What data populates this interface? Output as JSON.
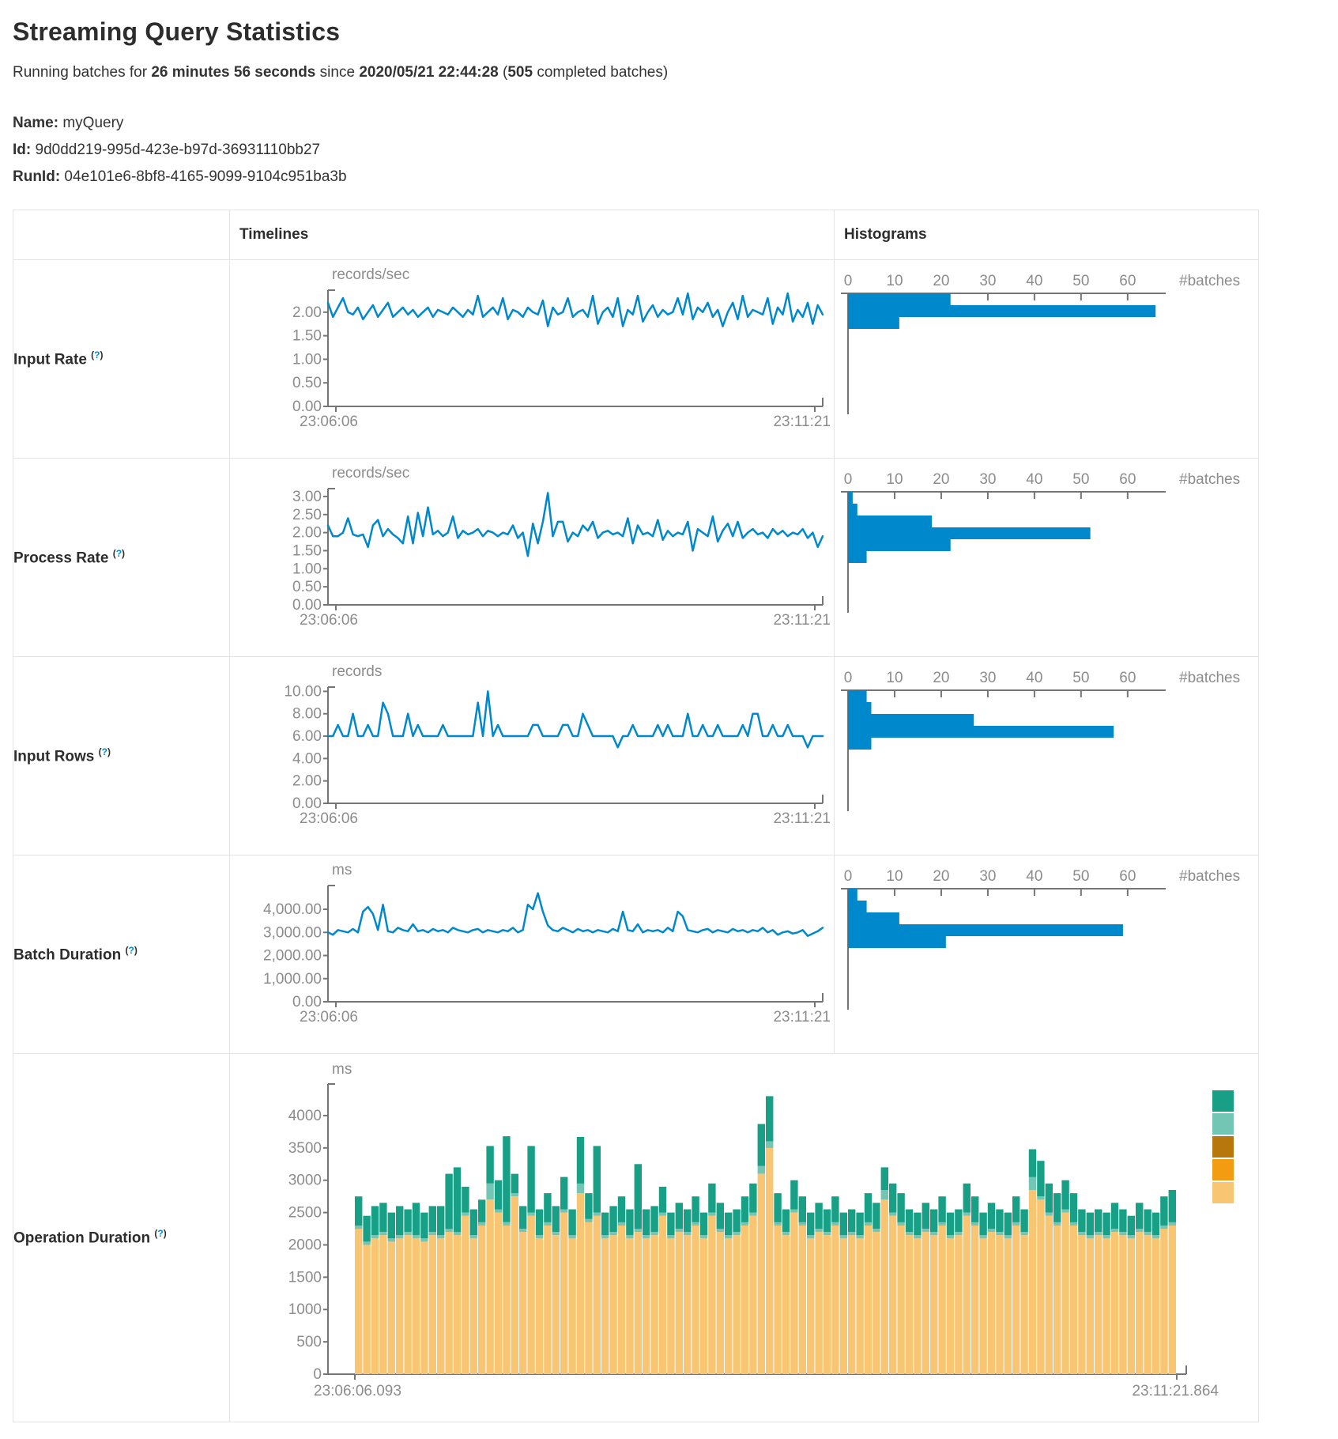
{
  "header": {
    "title": "Streaming Query Statistics",
    "running_prefix": "Running batches for ",
    "duration": "26 minutes 56 seconds",
    "since_text": " since ",
    "start_time": "2020/05/21 22:44:28",
    "paren_open": " (",
    "completed_batches": "505",
    "completed_suffix": " completed batches)"
  },
  "query_info": {
    "name_label": "Name:",
    "name": " myQuery",
    "id_label": "Id:",
    "id": " 9d0dd219-995d-423e-b97d-36931110bb27",
    "runid_label": "RunId:",
    "runid": " 04e101e6-8bf8-4165-9099-9104c951ba3b"
  },
  "table_header": {
    "timelines": "Timelines",
    "histograms": "Histograms"
  },
  "hint": {
    "open": "(",
    "q": "?",
    "close": ")"
  },
  "rows": [
    {
      "label": "Input Rate"
    },
    {
      "label": "Process Rate"
    },
    {
      "label": "Input Rows"
    },
    {
      "label": "Batch Duration"
    },
    {
      "label": "Operation Duration"
    }
  ],
  "colors": {
    "line_blue": "#0088cc",
    "axis": "#757575",
    "tick_text": "#8c8c8c",
    "border": "#e3e3e3"
  },
  "chart_data": [
    {
      "type": "line",
      "title": "records/sec",
      "x_start": "23:06:06",
      "x_end": "23:11:21",
      "ylim": [
        0,
        2.4
      ],
      "yticks": [
        {
          "label": "2.00",
          "v": 2
        },
        {
          "label": "1.50",
          "v": 1.5
        },
        {
          "label": "1.00",
          "v": 1
        },
        {
          "label": "0.50",
          "v": 0.5
        },
        {
          "label": "0.00",
          "v": 0
        }
      ],
      "values": [
        2.2,
        1.9,
        2.1,
        2.3,
        2.0,
        1.95,
        2.1,
        1.85,
        2.0,
        2.15,
        1.9,
        2.05,
        2.2,
        1.9,
        2.0,
        2.1,
        1.95,
        2.05,
        1.9,
        2.0,
        2.1,
        1.9,
        2.05,
        2.0,
        1.95,
        2.1,
        2.0,
        1.9,
        2.05,
        1.95,
        2.35,
        1.9,
        2.0,
        2.1,
        1.95,
        2.3,
        1.85,
        2.05,
        2.0,
        1.9,
        2.1,
        2.0,
        1.95,
        2.25,
        1.7,
        2.1,
        1.95,
        2.0,
        2.3,
        1.9,
        2.0,
        2.05,
        1.9,
        2.35,
        1.75,
        2.0,
        2.1,
        1.9,
        2.3,
        1.7,
        2.05,
        1.95,
        2.35,
        1.8,
        2.0,
        2.15,
        1.9,
        2.05,
        1.95,
        2.0,
        2.3,
        1.95,
        2.4,
        1.85,
        2.1,
        2.0,
        2.2,
        1.9,
        2.05,
        1.7,
        2.0,
        2.2,
        1.85,
        2.35,
        1.9,
        2.05,
        2.0,
        1.95,
        2.3,
        1.75,
        2.1,
        1.95,
        2.4,
        1.8,
        2.05,
        1.9,
        2.2,
        1.75,
        2.15,
        1.95
      ]
    },
    {
      "type": "hbar",
      "xlabel": "#batches",
      "xticks": [
        0,
        10,
        20,
        30,
        40,
        50,
        60
      ],
      "xlim": [
        0,
        68
      ],
      "values": [
        22,
        66,
        11
      ]
    },
    {
      "type": "line",
      "title": "records/sec",
      "x_start": "23:06:06",
      "x_end": "23:11:21",
      "ylim": [
        0,
        3.13
      ],
      "yticks": [
        {
          "label": "3.00",
          "v": 3
        },
        {
          "label": "2.50",
          "v": 2.5
        },
        {
          "label": "2.00",
          "v": 2
        },
        {
          "label": "1.50",
          "v": 1.5
        },
        {
          "label": "1.00",
          "v": 1
        },
        {
          "label": "0.50",
          "v": 0.5
        },
        {
          "label": "0.00",
          "v": 0
        }
      ],
      "values": [
        2.2,
        1.9,
        1.9,
        2.0,
        2.4,
        1.95,
        1.9,
        1.95,
        1.6,
        2.2,
        2.35,
        1.9,
        2.1,
        1.95,
        1.85,
        1.7,
        2.45,
        1.7,
        2.55,
        1.9,
        2.7,
        1.95,
        2.05,
        1.9,
        2.0,
        2.45,
        1.85,
        2.05,
        1.95,
        2.0,
        2.1,
        1.9,
        2.05,
        2.0,
        1.9,
        2.0,
        1.95,
        2.2,
        1.85,
        2.0,
        1.35,
        2.25,
        1.7,
        2.3,
        3.1,
        1.9,
        2.3,
        2.3,
        1.75,
        2.0,
        1.9,
        2.2,
        2.05,
        2.3,
        1.85,
        2.0,
        2.05,
        1.95,
        2.0,
        1.9,
        2.4,
        1.7,
        2.2,
        1.95,
        2.0,
        1.9,
        2.35,
        1.8,
        2.05,
        1.9,
        2.0,
        1.95,
        2.3,
        1.5,
        2.1,
        2.0,
        1.9,
        2.45,
        1.75,
        2.05,
        2.25,
        1.9,
        2.3,
        1.85,
        2.0,
        2.1,
        1.95,
        2.0,
        1.85,
        2.1,
        1.95,
        2.05,
        1.9,
        2.0,
        1.95,
        2.1,
        1.85,
        2.0,
        1.6,
        1.9
      ]
    },
    {
      "type": "hbar",
      "xlabel": "#batches",
      "xticks": [
        0,
        10,
        20,
        30,
        40,
        50,
        60
      ],
      "xlim": [
        0,
        68
      ],
      "values": [
        1,
        2,
        18,
        52,
        22,
        4
      ]
    },
    {
      "type": "line",
      "title": "records",
      "x_start": "23:06:06",
      "x_end": "23:11:21",
      "ylim": [
        0,
        10.1
      ],
      "yticks": [
        {
          "label": "10.00",
          "v": 10
        },
        {
          "label": "8.00",
          "v": 8
        },
        {
          "label": "6.00",
          "v": 6
        },
        {
          "label": "4.00",
          "v": 4
        },
        {
          "label": "2.00",
          "v": 2
        },
        {
          "label": "0.00",
          "v": 0
        }
      ],
      "values": [
        6,
        6,
        7,
        6,
        6,
        8,
        6,
        6,
        7,
        6,
        6,
        9,
        8,
        6,
        6,
        6,
        8,
        6,
        7,
        6,
        6,
        6,
        6,
        7,
        6,
        6,
        6,
        6,
        6,
        6,
        9,
        6,
        10,
        6,
        7,
        6,
        6,
        6,
        6,
        6,
        6,
        7,
        7,
        6,
        6,
        6,
        6,
        7,
        7,
        6,
        6,
        8,
        7,
        6,
        6,
        6,
        6,
        6,
        5,
        6,
        6,
        7,
        6,
        6,
        6,
        6,
        7,
        6,
        7,
        6,
        6,
        6,
        8,
        6,
        6,
        7,
        6,
        6,
        7,
        6,
        6,
        6,
        6,
        7,
        6,
        8,
        8,
        6,
        6,
        7,
        6,
        6,
        7,
        6,
        6,
        6,
        5,
        6,
        6,
        6
      ]
    },
    {
      "type": "hbar",
      "xlabel": "#batches",
      "xticks": [
        0,
        10,
        20,
        30,
        40,
        50,
        60
      ],
      "xlim": [
        0,
        68
      ],
      "values": [
        4,
        5,
        27,
        57,
        5
      ]
    },
    {
      "type": "line",
      "title": "ms",
      "x_start": "23:06:06",
      "x_end": "23:11:21",
      "ylim": [
        0,
        4890
      ],
      "yticks": [
        {
          "label": "4,000.00",
          "v": 4000
        },
        {
          "label": "3,000.00",
          "v": 3000
        },
        {
          "label": "2,000.00",
          "v": 2000
        },
        {
          "label": "1,000.00",
          "v": 1000
        },
        {
          "label": "0.00",
          "v": 0
        }
      ],
      "values": [
        3000,
        2900,
        3100,
        3050,
        3000,
        3150,
        3000,
        3900,
        4100,
        3800,
        3100,
        4200,
        3050,
        3000,
        3200,
        3100,
        3050,
        3350,
        3050,
        3100,
        3000,
        3150,
        3050,
        3100,
        3000,
        3200,
        3100,
        3050,
        3000,
        3100,
        3150,
        3000,
        3100,
        3050,
        3000,
        3100,
        3050,
        3200,
        3000,
        3100,
        4200,
        4000,
        4700,
        3900,
        3300,
        3100,
        3050,
        3200,
        3100,
        3000,
        3150,
        3050,
        3100,
        3000,
        3100,
        3050,
        3000,
        3150,
        3050,
        3900,
        3100,
        3050,
        3350,
        3000,
        3100,
        3050,
        3100,
        3000,
        3200,
        3050,
        3900,
        3700,
        3100,
        3050,
        3000,
        3100,
        3150,
        3000,
        3100,
        3050,
        3000,
        3150,
        3050,
        3100,
        3000,
        3100,
        3050,
        3200,
        3000,
        3100,
        2900,
        3000,
        3050,
        2950,
        3000,
        3100,
        2850,
        2950,
        3050,
        3200
      ]
    },
    {
      "type": "hbar",
      "xlabel": "#batches",
      "xticks": [
        0,
        10,
        20,
        30,
        40,
        50,
        60
      ],
      "xlim": [
        0,
        68
      ],
      "values": [
        2,
        4,
        11,
        59,
        21
      ]
    },
    {
      "type": "stacked",
      "title": "ms",
      "x_start": "23:06:06.093",
      "x_end": "23:11:21.864",
      "ylim": [
        0,
        4440
      ],
      "yticks": [
        {
          "label": "4000",
          "v": 4000
        },
        {
          "label": "3500",
          "v": 3500
        },
        {
          "label": "3000",
          "v": 3000
        },
        {
          "label": "2500",
          "v": 2500
        },
        {
          "label": "2000",
          "v": 2000
        },
        {
          "label": "1500",
          "v": 1500
        },
        {
          "label": "1000",
          "v": 1000
        },
        {
          "label": "500",
          "v": 500
        },
        {
          "label": "0",
          "v": 0
        }
      ],
      "legend_colors": [
        "#17a086",
        "#73c6b4",
        "#b8770d",
        "#f39c12",
        "#f8c572"
      ],
      "series": [
        {
          "name": "tan",
          "color": "#f8c572",
          "values": [
            2250,
            2000,
            2100,
            2150,
            2050,
            2100,
            2150,
            2100,
            2050,
            2150,
            2100,
            2200,
            2150,
            2450,
            2100,
            2300,
            2700,
            2500,
            2300,
            2750,
            2200,
            2450,
            2100,
            2300,
            2150,
            2500,
            2100,
            2800,
            2350,
            2450,
            2100,
            2150,
            2300,
            2100,
            2200,
            2100,
            2150,
            2450,
            2100,
            2200,
            2150,
            2300,
            2100,
            2450,
            2200,
            2100,
            2150,
            2300,
            2450,
            3100,
            3500,
            2300,
            2150,
            2500,
            2300,
            2100,
            2200,
            2150,
            2300,
            2100,
            2150,
            2100,
            2300,
            2200,
            2700,
            2450,
            2300,
            2150,
            2100,
            2200,
            2150,
            2300,
            2100,
            2150,
            2450,
            2300,
            2100,
            2200,
            2150,
            2100,
            2300,
            2150,
            2850,
            2700,
            2450,
            2300,
            2500,
            2300,
            2150,
            2100,
            2150,
            2100,
            2200,
            2150,
            2100,
            2200,
            2150,
            2100,
            2250,
            2300
          ]
        },
        {
          "name": "light-teal",
          "color": "#73c6b4",
          "values": [
            50,
            50,
            50,
            50,
            50,
            50,
            50,
            50,
            50,
            50,
            50,
            50,
            50,
            50,
            50,
            50,
            250,
            50,
            50,
            50,
            50,
            50,
            50,
            50,
            50,
            50,
            50,
            150,
            50,
            50,
            50,
            50,
            50,
            50,
            50,
            50,
            50,
            50,
            50,
            50,
            50,
            50,
            50,
            50,
            50,
            50,
            50,
            50,
            50,
            120,
            100,
            50,
            50,
            50,
            50,
            50,
            50,
            50,
            50,
            50,
            50,
            50,
            50,
            50,
            150,
            50,
            50,
            50,
            50,
            50,
            50,
            50,
            50,
            50,
            50,
            50,
            50,
            50,
            50,
            50,
            50,
            50,
            200,
            50,
            50,
            50,
            50,
            50,
            50,
            50,
            50,
            50,
            50,
            50,
            50,
            50,
            50,
            50,
            50,
            50
          ]
        },
        {
          "name": "teal",
          "color": "#17a086",
          "values": [
            450,
            400,
            450,
            450,
            400,
            450,
            350,
            500,
            400,
            400,
            450,
            850,
            1000,
            400,
            400,
            350,
            580,
            450,
            1330,
            300,
            350,
            1030,
            400,
            450,
            400,
            500,
            400,
            720,
            400,
            1030,
            350,
            400,
            400,
            400,
            1000,
            400,
            400,
            400,
            350,
            400,
            350,
            400,
            350,
            450,
            400,
            350,
            350,
            400,
            450,
            650,
            700,
            450,
            350,
            450,
            400,
            350,
            400,
            350,
            400,
            350,
            350,
            350,
            450,
            400,
            350,
            450,
            450,
            350,
            350,
            400,
            350,
            400,
            350,
            350,
            450,
            400,
            350,
            400,
            350,
            350,
            400,
            350,
            430,
            550,
            450,
            450,
            450,
            450,
            350,
            350,
            350,
            350,
            400,
            350,
            300,
            400,
            350,
            350,
            450,
            500
          ]
        }
      ]
    }
  ]
}
